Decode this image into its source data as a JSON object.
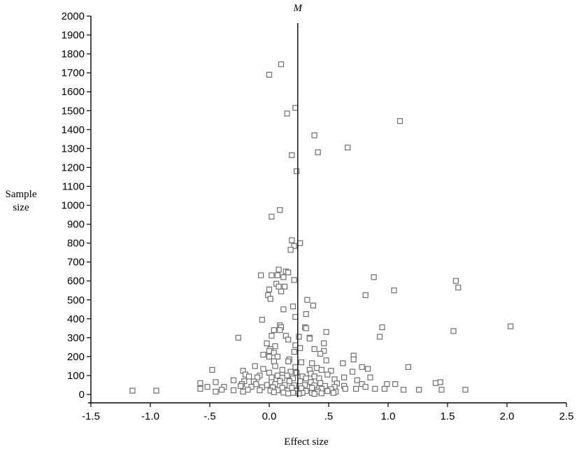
{
  "chart_data": {
    "type": "scatter",
    "title": "",
    "xlabel": "Effect size",
    "ylabel_lines": [
      "Sample",
      "size"
    ],
    "xlim": [
      -1.5,
      2.5
    ],
    "ylim": [
      0,
      2000
    ],
    "x_ticks": [
      -1.5,
      -1.0,
      -0.5,
      0.0,
      0.5,
      1.0,
      1.5,
      2.0,
      2.5
    ],
    "x_tick_labels": [
      "-1.5",
      "-1.0",
      "-.5",
      "0.0",
      ".5",
      "1.0",
      "1.5",
      "2.0",
      "2.5"
    ],
    "y_ticks": [
      0,
      100,
      200,
      300,
      400,
      500,
      600,
      700,
      800,
      900,
      1000,
      1100,
      1200,
      1300,
      1400,
      1500,
      1600,
      1700,
      1800,
      1900,
      2000
    ],
    "reference_line": {
      "label": "M",
      "x": 0.24
    },
    "grid": false,
    "legend": "none",
    "marker": "open-square",
    "colors": {
      "marker": "#6e6e6e",
      "axis": "#000000",
      "reference": "#000000"
    },
    "points": [
      [
        0.1,
        1745
      ],
      [
        0.0,
        1690
      ],
      [
        0.22,
        1515
      ],
      [
        0.15,
        1485
      ],
      [
        1.1,
        1445
      ],
      [
        0.38,
        1370
      ],
      [
        0.66,
        1305
      ],
      [
        0.41,
        1280
      ],
      [
        0.19,
        1265
      ],
      [
        0.23,
        1180
      ],
      [
        0.09,
        975
      ],
      [
        0.02,
        940
      ],
      [
        0.26,
        800
      ],
      [
        0.19,
        815
      ],
      [
        0.21,
        785
      ],
      [
        0.18,
        765
      ],
      [
        0.08,
        660
      ],
      [
        0.14,
        650
      ],
      [
        0.16,
        645
      ],
      [
        0.07,
        630
      ],
      [
        0.12,
        620
      ],
      [
        0.88,
        620
      ],
      [
        -0.07,
        630
      ],
      [
        0.02,
        630
      ],
      [
        0.21,
        605
      ],
      [
        1.57,
        600
      ],
      [
        0.06,
        585
      ],
      [
        0.13,
        570
      ],
      [
        1.59,
        565
      ],
      [
        0.0,
        555
      ],
      [
        0.1,
        545
      ],
      [
        0.08,
        570
      ],
      [
        1.05,
        550
      ],
      [
        -0.01,
        525
      ],
      [
        0.81,
        525
      ],
      [
        0.01,
        505
      ],
      [
        0.32,
        500
      ],
      [
        0.37,
        470
      ],
      [
        0.2,
        465
      ],
      [
        0.12,
        450
      ],
      [
        0.31,
        425
      ],
      [
        0.22,
        410
      ],
      [
        -0.06,
        395
      ],
      [
        0.09,
        365
      ],
      [
        0.1,
        355
      ],
      [
        0.3,
        355
      ],
      [
        2.03,
        360
      ],
      [
        0.95,
        355
      ],
      [
        0.09,
        340
      ],
      [
        0.04,
        340
      ],
      [
        0.31,
        350
      ],
      [
        0.48,
        330
      ],
      [
        1.55,
        335
      ],
      [
        0.02,
        310
      ],
      [
        0.14,
        310
      ],
      [
        -0.26,
        300
      ],
      [
        0.25,
        305
      ],
      [
        0.34,
        300
      ],
      [
        0.34,
        295
      ],
      [
        0.16,
        290
      ],
      [
        0.93,
        305
      ],
      [
        -0.02,
        270
      ],
      [
        0.46,
        270
      ],
      [
        0.22,
        260
      ],
      [
        0.05,
        255
      ],
      [
        0.26,
        245
      ],
      [
        0.01,
        240
      ],
      [
        0.0,
        230
      ],
      [
        0.38,
        240
      ],
      [
        0.46,
        230
      ],
      [
        0.04,
        220
      ],
      [
        0.21,
        225
      ],
      [
        0.43,
        215
      ],
      [
        -0.05,
        210
      ],
      [
        0.0,
        200
      ],
      [
        0.07,
        200
      ],
      [
        0.71,
        205
      ],
      [
        0.71,
        185
      ],
      [
        0.17,
        185
      ],
      [
        0.48,
        180
      ],
      [
        0.04,
        175
      ],
      [
        0.16,
        175
      ],
      [
        0.27,
        170
      ],
      [
        0.36,
        165
      ],
      [
        0.62,
        165
      ],
      [
        0.78,
        145
      ],
      [
        0.83,
        135
      ],
      [
        1.17,
        145
      ],
      [
        -0.12,
        150
      ],
      [
        0.05,
        150
      ],
      [
        0.22,
        145
      ],
      [
        0.4,
        140
      ],
      [
        -0.05,
        135
      ],
      [
        0.11,
        130
      ],
      [
        0.34,
        130
      ],
      [
        0.44,
        130
      ],
      [
        0.52,
        125
      ],
      [
        0.7,
        120
      ],
      [
        -0.48,
        130
      ],
      [
        -0.22,
        125
      ],
      [
        0.18,
        120
      ],
      [
        0.23,
        115
      ],
      [
        0.0,
        115
      ],
      [
        0.35,
        110
      ],
      [
        0.49,
        105
      ],
      [
        -0.2,
        105
      ],
      [
        -0.08,
        100
      ],
      [
        0.07,
        100
      ],
      [
        0.15,
        100
      ],
      [
        0.28,
        95
      ],
      [
        0.38,
        95
      ],
      [
        0.63,
        90
      ],
      [
        0.85,
        90
      ],
      [
        -0.58,
        60
      ],
      [
        -0.45,
        65
      ],
      [
        -0.17,
        95
      ],
      [
        -0.1,
        90
      ],
      [
        0.02,
        90
      ],
      [
        0.11,
        88
      ],
      [
        0.2,
        85
      ],
      [
        0.31,
        85
      ],
      [
        0.42,
        85
      ],
      [
        0.55,
        80
      ],
      [
        0.74,
        75
      ],
      [
        -0.3,
        75
      ],
      [
        -0.21,
        70
      ],
      [
        -0.13,
        68
      ],
      [
        0.02,
        65
      ],
      [
        0.09,
        70
      ],
      [
        0.17,
        70
      ],
      [
        0.26,
        70
      ],
      [
        0.35,
        65
      ],
      [
        0.43,
        60
      ],
      [
        0.57,
        58
      ],
      [
        0.78,
        55
      ],
      [
        0.99,
        55
      ],
      [
        1.06,
        55
      ],
      [
        1.4,
        60
      ],
      [
        1.44,
        65
      ],
      [
        -0.23,
        55
      ],
      [
        -0.11,
        55
      ],
      [
        -0.02,
        50
      ],
      [
        0.05,
        55
      ],
      [
        0.13,
        50
      ],
      [
        0.21,
        48
      ],
      [
        0.3,
        50
      ],
      [
        0.38,
        48
      ],
      [
        0.47,
        45
      ],
      [
        0.55,
        40
      ],
      [
        0.63,
        45
      ],
      [
        0.81,
        40
      ],
      [
        -0.52,
        40
      ],
      [
        -0.38,
        40
      ],
      [
        -0.24,
        45
      ],
      [
        -0.15,
        40
      ],
      [
        -0.06,
        38
      ],
      [
        0.03,
        38
      ],
      [
        0.11,
        35
      ],
      [
        0.19,
        35
      ],
      [
        0.27,
        32
      ],
      [
        0.36,
        35
      ],
      [
        0.44,
        30
      ],
      [
        0.52,
        28
      ],
      [
        0.64,
        30
      ],
      [
        0.73,
        30
      ],
      [
        0.89,
        30
      ],
      [
        0.97,
        30
      ],
      [
        1.13,
        25
      ],
      [
        1.26,
        25
      ],
      [
        1.45,
        25
      ],
      [
        1.65,
        25
      ],
      [
        -0.58,
        30
      ],
      [
        -0.4,
        25
      ],
      [
        -0.3,
        22
      ],
      [
        -0.18,
        25
      ],
      [
        -0.08,
        22
      ],
      [
        0.01,
        20
      ],
      [
        0.07,
        22
      ],
      [
        0.15,
        20
      ],
      [
        0.23,
        18
      ],
      [
        0.31,
        18
      ],
      [
        0.41,
        15
      ],
      [
        0.49,
        18
      ],
      [
        0.56,
        15
      ],
      [
        -1.15,
        20
      ],
      [
        -0.95,
        20
      ],
      [
        -0.45,
        15
      ],
      [
        -0.22,
        15
      ],
      [
        0.04,
        12
      ],
      [
        0.12,
        10
      ],
      [
        0.2,
        8
      ],
      [
        0.28,
        8
      ],
      [
        0.36,
        8
      ],
      [
        0.44,
        6
      ],
      [
        0.54,
        8
      ],
      [
        0.16,
        5
      ],
      [
        0.25,
        5
      ],
      [
        0.38,
        3
      ]
    ]
  }
}
